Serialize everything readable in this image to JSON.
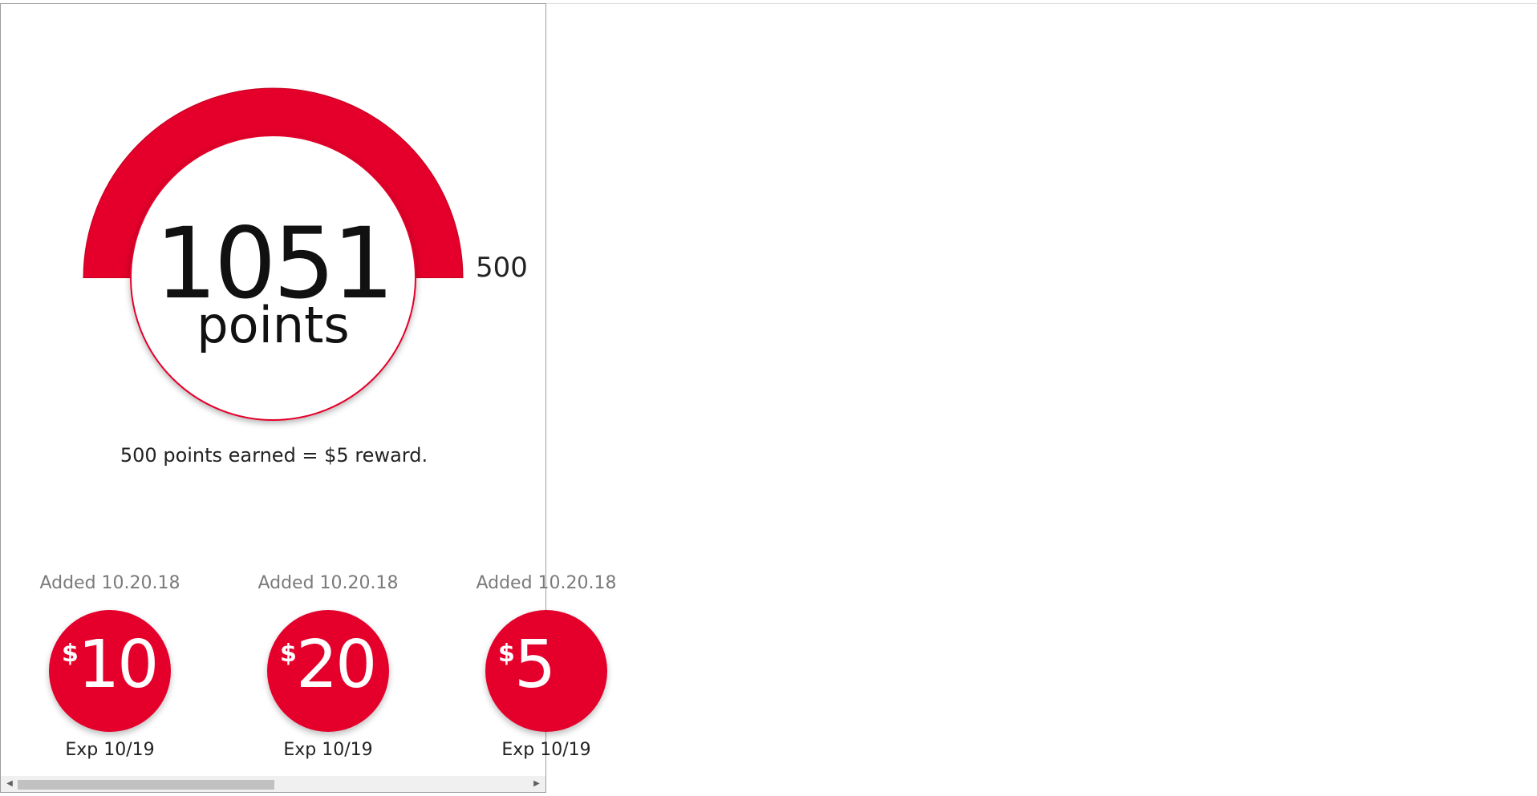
{
  "points": {
    "value": "1051",
    "label": "points",
    "goal": "500",
    "progress_fraction": 1.0
  },
  "reward_note": "500 points earned = $5 reward.",
  "rewards": [
    {
      "added": "Added 10.20.18",
      "currency": "$",
      "amount": "10",
      "exp": "Exp 10/19"
    },
    {
      "added": "Added 10.20.18",
      "currency": "$",
      "amount": "20",
      "exp": "Exp 10/19"
    },
    {
      "added": "Added 10.20.18",
      "currency": "$",
      "amount": "5",
      "exp": "Exp 10/19"
    }
  ],
  "scrollbar": {
    "left_arrow_icon": "chevron-left-icon",
    "right_arrow_icon": "chevron-right-icon"
  },
  "colors": {
    "brand_red": "#e4002b",
    "text": "#111111",
    "muted": "#7a7a7a"
  }
}
